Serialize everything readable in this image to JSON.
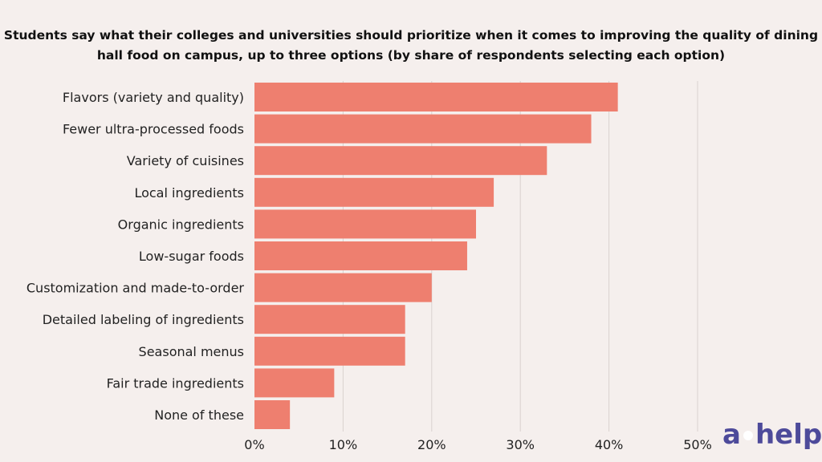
{
  "chart_data": {
    "type": "bar",
    "orientation": "horizontal",
    "title": "Students say what their colleges and universities should prioritize when it comes to improving the quality of dining hall food on campus, up to three options (by share of respondents selecting each option)",
    "categories": [
      "Flavors (variety and quality)",
      "Fewer ultra-processed foods",
      "Variety of cuisines",
      "Local ingredients",
      "Organic ingredients",
      "Low-sugar foods",
      "Customization and made-to-order",
      "Detailed labeling of ingredients",
      "Seasonal menus",
      "Fair trade ingredients",
      "None of these"
    ],
    "values": [
      41,
      38,
      33,
      27,
      25,
      24,
      20,
      17,
      17,
      9,
      4
    ],
    "xlim": [
      0,
      50
    ],
    "xticks": [
      0,
      10,
      20,
      30,
      40,
      50
    ],
    "xtick_labels": [
      "0%",
      "10%",
      "20%",
      "30%",
      "40%",
      "50%"
    ],
    "grid": true,
    "bar_color": "#ee7f6f",
    "xlabel": "",
    "ylabel": ""
  },
  "logo": {
    "text_left": "a",
    "text_right": "help"
  }
}
